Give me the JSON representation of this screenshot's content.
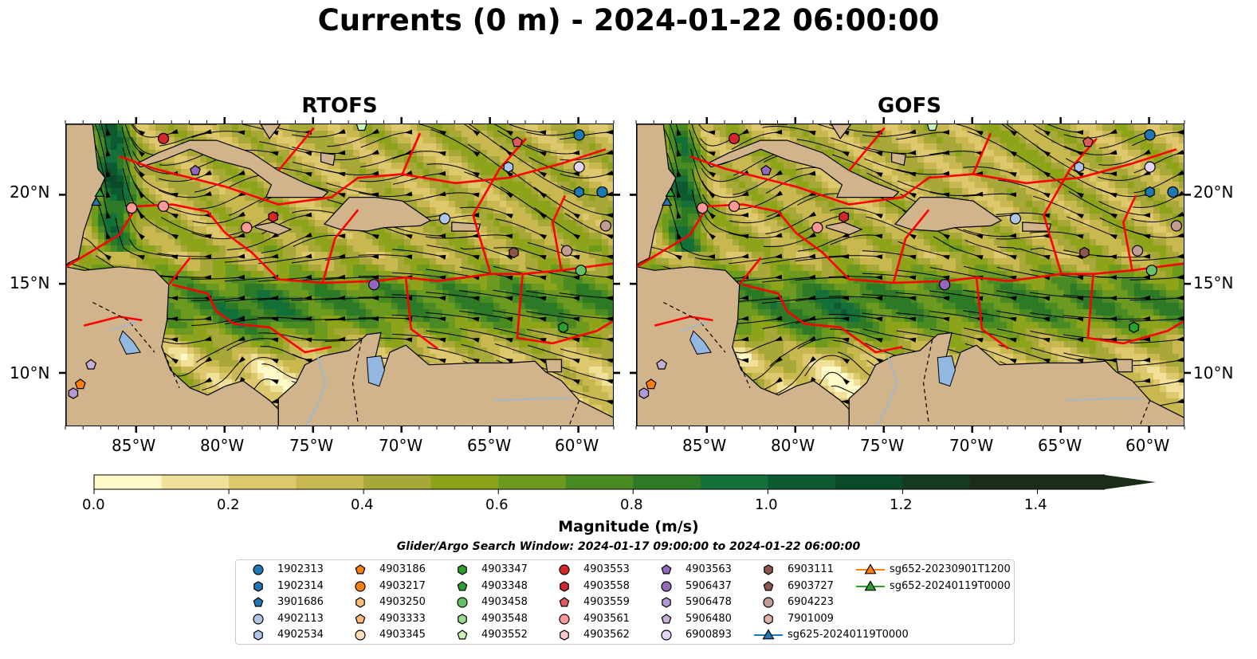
{
  "figure": {
    "title": "Currents (0 m) - 2024-01-22 06:00:00",
    "panels": [
      {
        "title": "RTOFS"
      },
      {
        "title": "GOFS"
      }
    ],
    "lon_ticks": [
      "85°W",
      "80°W",
      "75°W",
      "70°W",
      "65°W",
      "60°W"
    ],
    "lat_ticks": [
      "20°N",
      "15°N",
      "10°N"
    ],
    "colorbar": {
      "label": "Magnitude (m/s)",
      "ticks": [
        "0.0",
        "0.2",
        "0.4",
        "0.6",
        "0.8",
        "1.0",
        "1.2",
        "1.4"
      ],
      "range": [
        0.0,
        1.5
      ],
      "extend": "max"
    },
    "search_window": "Glider/Argo Search Window: 2024-01-17 09:00:00 to 2024-01-22 06:00:00"
  },
  "map_extent": {
    "lon": [
      -89,
      -58
    ],
    "lat": [
      7,
      24
    ]
  },
  "colors": {
    "land": "#d1b48c",
    "lake": "#92b7e0",
    "eez": "#ff0000",
    "streamline": "#000000"
  },
  "legend": [
    {
      "id": "1902313",
      "marker": "circle",
      "color": "#1f77b4"
    },
    {
      "id": "1902314",
      "marker": "hexagon",
      "color": "#1f77b4"
    },
    {
      "id": "3901686",
      "marker": "pentagon",
      "color": "#1f77b4"
    },
    {
      "id": "4902113",
      "marker": "circle",
      "color": "#aec7e8"
    },
    {
      "id": "4902534",
      "marker": "hexagon",
      "color": "#aec7e8"
    },
    {
      "id": "4903186",
      "marker": "pentagon",
      "color": "#ff7f0e"
    },
    {
      "id": "4903217",
      "marker": "circle",
      "color": "#ff7f0e"
    },
    {
      "id": "4903250",
      "marker": "hexagon",
      "color": "#ffbb78"
    },
    {
      "id": "4903333",
      "marker": "pentagon",
      "color": "#ffbb78"
    },
    {
      "id": "4903345",
      "marker": "circle",
      "color": "#ffdab5"
    },
    {
      "id": "4903347",
      "marker": "hexagon",
      "color": "#2ca02c"
    },
    {
      "id": "4903348",
      "marker": "pentagon",
      "color": "#2ca02c"
    },
    {
      "id": "4903458",
      "marker": "circle",
      "color": "#66c166"
    },
    {
      "id": "4903548",
      "marker": "hexagon",
      "color": "#98df8a"
    },
    {
      "id": "4903552",
      "marker": "pentagon",
      "color": "#c7f2b8"
    },
    {
      "id": "4903553",
      "marker": "circle",
      "color": "#d62728"
    },
    {
      "id": "4903558",
      "marker": "hexagon",
      "color": "#d62728"
    },
    {
      "id": "4903559",
      "marker": "pentagon",
      "color": "#e15a5a"
    },
    {
      "id": "4903561",
      "marker": "circle",
      "color": "#ff9896"
    },
    {
      "id": "4903562",
      "marker": "hexagon",
      "color": "#ffc9c8"
    },
    {
      "id": "4903563",
      "marker": "pentagon",
      "color": "#9467bd"
    },
    {
      "id": "5906437",
      "marker": "circle",
      "color": "#9467bd"
    },
    {
      "id": "5906478",
      "marker": "hexagon",
      "color": "#b39ad6"
    },
    {
      "id": "5906480",
      "marker": "pentagon",
      "color": "#c5b0d5"
    },
    {
      "id": "6900893",
      "marker": "circle",
      "color": "#e6d4f5"
    },
    {
      "id": "6903111",
      "marker": "hexagon",
      "color": "#8c564b"
    },
    {
      "id": "6903727",
      "marker": "pentagon",
      "color": "#8c564b"
    },
    {
      "id": "6904223",
      "marker": "circle",
      "color": "#c49c94"
    },
    {
      "id": "7901009",
      "marker": "hexagon",
      "color": "#e2b4a8"
    },
    {
      "id": "sg625-20240119T0000",
      "marker": "triangle-line",
      "color": "#1f77b4"
    },
    {
      "id": "sg652-20230901T1200",
      "marker": "triangle-line",
      "color": "#ff7f0e"
    },
    {
      "id": "sg652-20240119T0000",
      "marker": "triangle-line",
      "color": "#2ca02c"
    }
  ],
  "observations": [
    {
      "id": "1902313",
      "lon": -60.0,
      "lat": 23.4
    },
    {
      "id": "1902313",
      "lon": -58.7,
      "lat": 20.2
    },
    {
      "id": "1902314",
      "lon": -60.0,
      "lat": 20.2
    },
    {
      "id": "4902534",
      "lon": -64.0,
      "lat": 21.6
    },
    {
      "id": "4902113",
      "lon": -67.6,
      "lat": 18.7
    },
    {
      "id": "4903552",
      "lon": -72.3,
      "lat": 23.9
    },
    {
      "id": "4903559",
      "lon": -63.5,
      "lat": 23.0
    },
    {
      "id": "4903553",
      "lon": -83.5,
      "lat": 23.2
    },
    {
      "id": "4903563",
      "lon": -81.7,
      "lat": 21.4
    },
    {
      "id": "4903561",
      "lon": -85.3,
      "lat": 19.3
    },
    {
      "id": "4903561",
      "lon": -83.5,
      "lat": 19.4
    },
    {
      "id": "4903561",
      "lon": -78.8,
      "lat": 18.2
    },
    {
      "id": "4903558",
      "lon": -77.3,
      "lat": 18.8
    },
    {
      "id": "6900893",
      "lon": -60.0,
      "lat": 21.6
    },
    {
      "id": "6904223",
      "lon": -58.5,
      "lat": 18.3
    },
    {
      "id": "6904223",
      "lon": -60.7,
      "lat": 16.9
    },
    {
      "id": "6903111",
      "lon": -63.7,
      "lat": 16.8
    },
    {
      "id": "4903458",
      "lon": -59.9,
      "lat": 15.8
    },
    {
      "id": "4903347",
      "lon": -60.9,
      "lat": 12.6
    },
    {
      "id": "5906437",
      "lon": -71.6,
      "lat": 15.0
    },
    {
      "id": "5906480",
      "lon": -87.6,
      "lat": 10.5
    },
    {
      "id": "4903186",
      "lon": -88.2,
      "lat": 9.4
    },
    {
      "id": "5906478",
      "lon": -88.6,
      "lat": 8.9
    },
    {
      "id": "sg652-20240119T0000",
      "lon": -87.1,
      "lat": 20.1
    },
    {
      "id": "sg625-20240119T0000",
      "lon": -87.3,
      "lat": 19.6
    }
  ]
}
